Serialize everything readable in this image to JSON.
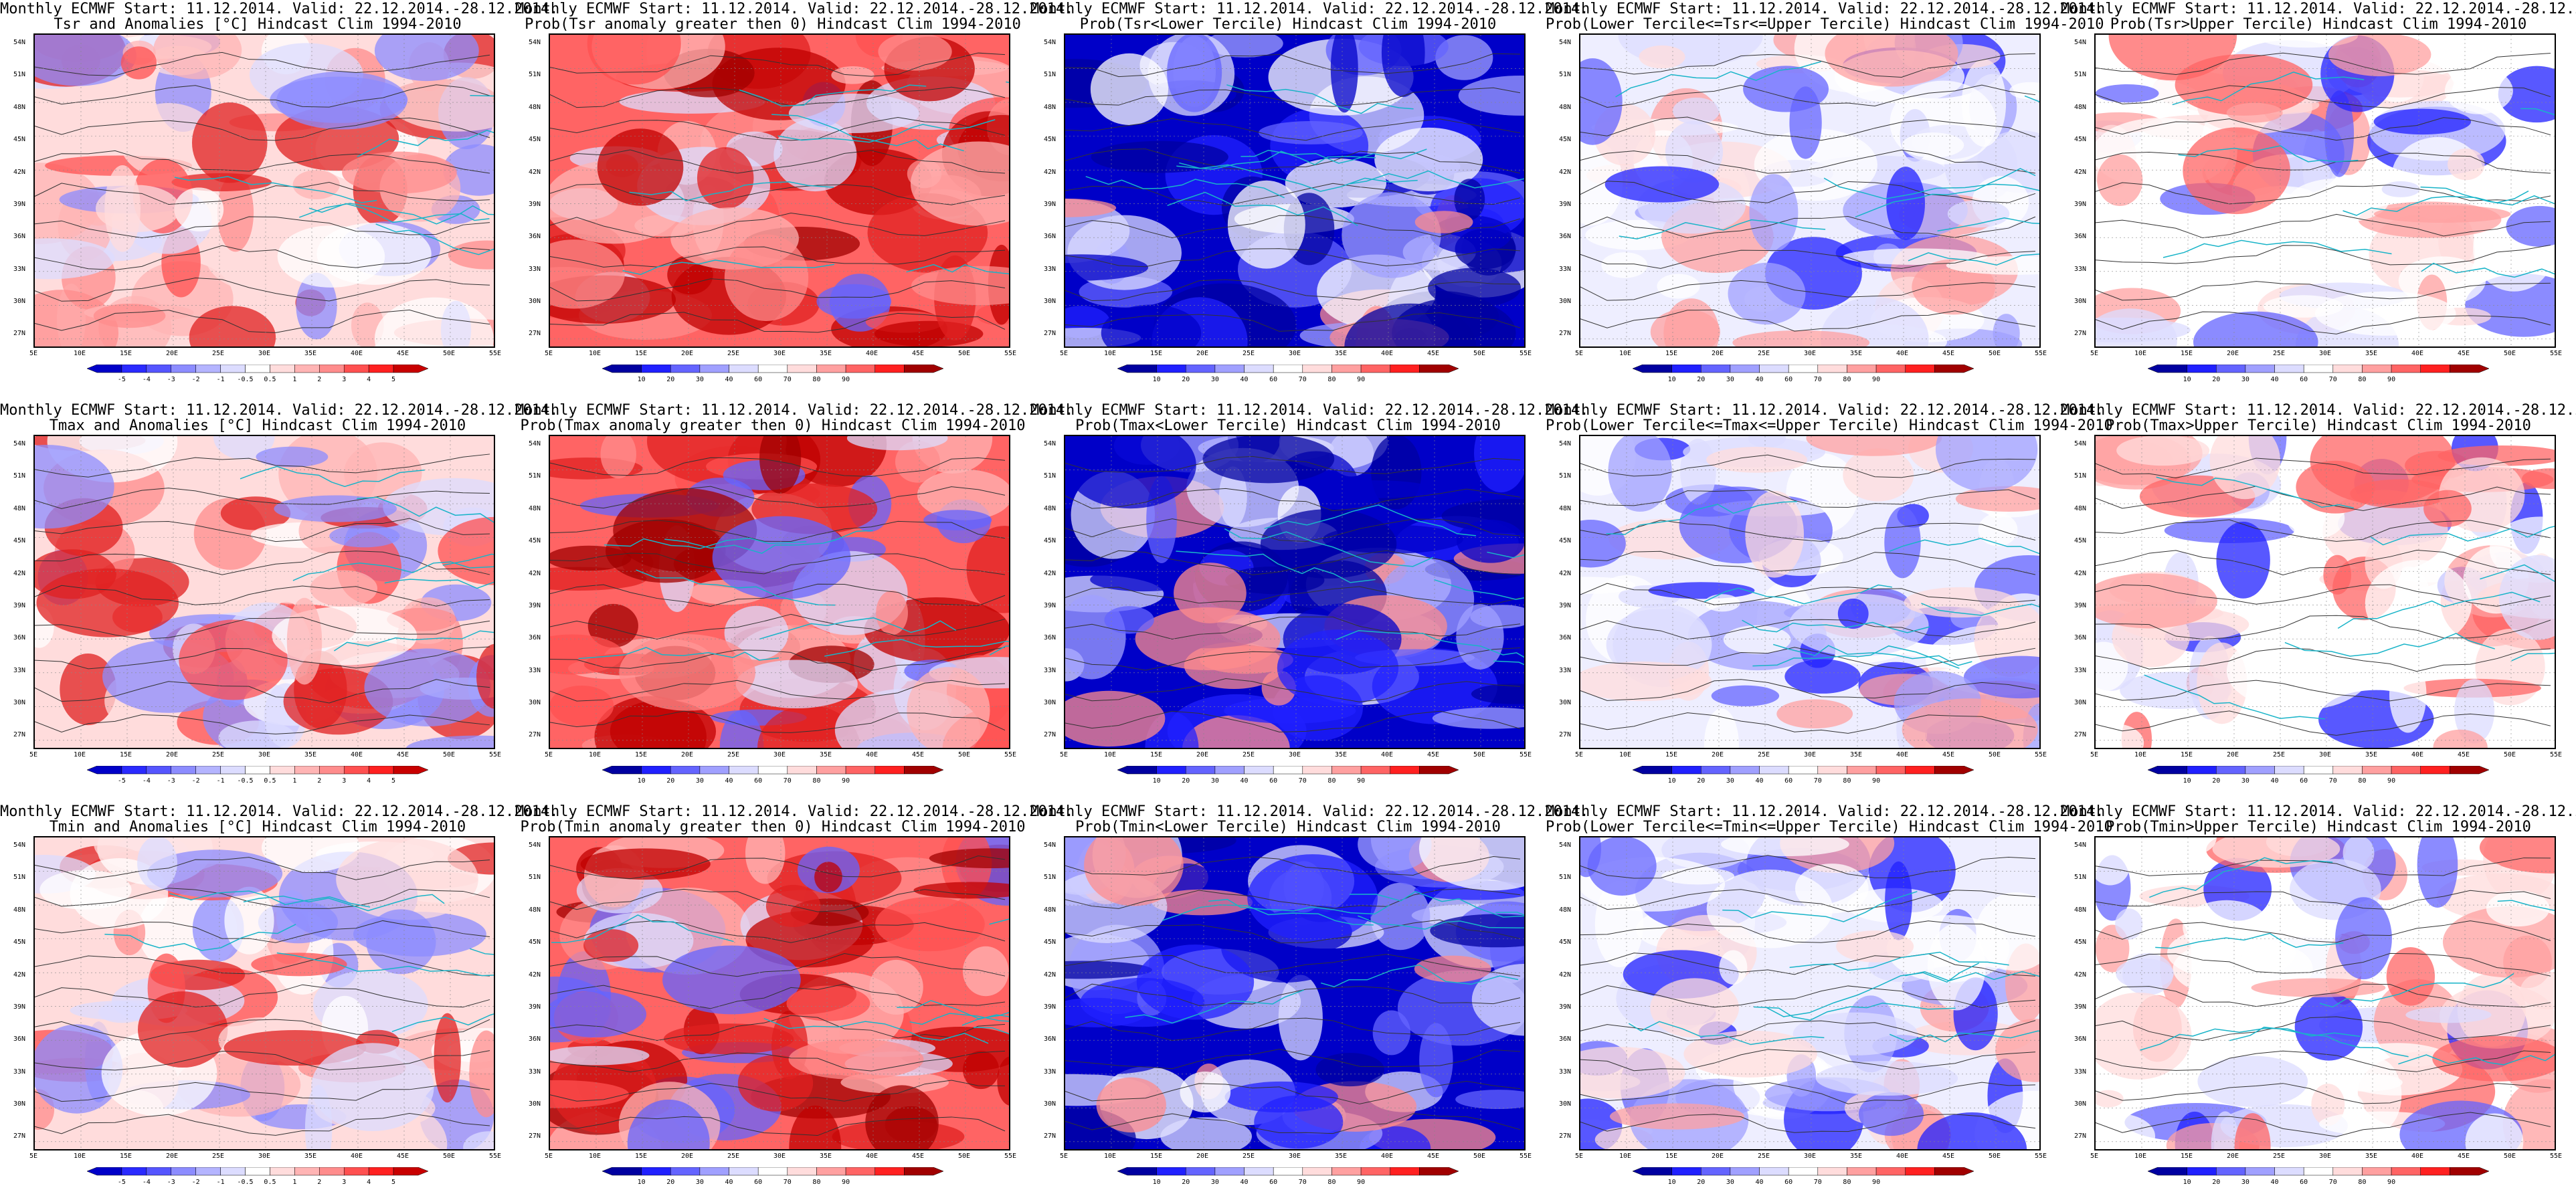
{
  "header_line": "Monthly ECMWF Start: 11.12.2014. Valid: 22.12.2014.-28.12.2014.",
  "lat_labels": [
    "54N",
    "51N",
    "48N",
    "45N",
    "42N",
    "39N",
    "36N",
    "33N",
    "30N",
    "27N"
  ],
  "lon_labels": [
    "5E",
    "10E",
    "15E",
    "20E",
    "25E",
    "30E",
    "35E",
    "40E",
    "45E",
    "50E",
    "55E"
  ],
  "colorbars": {
    "anomaly": {
      "labels": [
        "-5",
        "-4",
        "-3",
        "-2",
        "-1",
        "-0.5",
        "0.5",
        "1",
        "2",
        "3",
        "4",
        "5"
      ],
      "colors": [
        "#0000c8",
        "#2a2aff",
        "#5555ff",
        "#8c8cff",
        "#b4b4ff",
        "#dcdcff",
        "#ffffff",
        "#ffdcdc",
        "#ffb4b4",
        "#ff8c8c",
        "#ff5050",
        "#ff2020",
        "#c80000"
      ]
    },
    "probability": {
      "labels": [
        "10",
        "20",
        "30",
        "40",
        "60",
        "70",
        "80",
        "90"
      ],
      "colors": [
        "#0000a0",
        "#2020ff",
        "#6464ff",
        "#a0a0ff",
        "#dcdcff",
        "#ffffff",
        "#ffdcdc",
        "#ffa0a0",
        "#ff6464",
        "#ff2020",
        "#a00000"
      ]
    }
  },
  "panels": [
    {
      "line2": "Tsr and Anomalies [°C] Hindcast Clim 1994-2010",
      "bar": "anomaly",
      "scheme": "anom"
    },
    {
      "line2": "Prob(Tsr anomaly greater then 0) Hindcast Clim 1994-2010",
      "bar": "probability",
      "scheme": "warm"
    },
    {
      "line2": "Prob(Tsr<Lower Tercile) Hindcast Clim 1994-2010",
      "bar": "probability",
      "scheme": "cold"
    },
    {
      "line2": "Prob(Lower Tercile<=Tsr<=Upper Tercile) Hindcast Clim 1994-2010",
      "bar": "probability",
      "scheme": "mid"
    },
    {
      "line2": "Prob(Tsr>Upper Tercile) Hindcast Clim 1994-2010",
      "bar": "probability",
      "scheme": "upper"
    },
    {
      "line2": "Tmax and Anomalies [°C] Hindcast Clim 1994-2010",
      "bar": "anomaly",
      "scheme": "anom"
    },
    {
      "line2": "Prob(Tmax anomaly greater then 0) Hindcast Clim 1994-2010",
      "bar": "probability",
      "scheme": "warm"
    },
    {
      "line2": "Prob(Tmax<Lower Tercile) Hindcast Clim 1994-2010",
      "bar": "probability",
      "scheme": "cold"
    },
    {
      "line2": "Prob(Lower Tercile<=Tmax<=Upper Tercile) Hindcast Clim 1994-2010",
      "bar": "probability",
      "scheme": "mid"
    },
    {
      "line2": "Prob(Tmax>Upper Tercile) Hindcast Clim 1994-2010",
      "bar": "probability",
      "scheme": "upper"
    },
    {
      "line2": "Tmin and Anomalies [°C] Hindcast Clim 1994-2010",
      "bar": "anomaly",
      "scheme": "anom"
    },
    {
      "line2": "Prob(Tmin anomaly greater then 0) Hindcast Clim 1994-2010",
      "bar": "probability",
      "scheme": "warm"
    },
    {
      "line2": "Prob(Tmin<Lower Tercile) Hindcast Clim 1994-2010",
      "bar": "probability",
      "scheme": "cold"
    },
    {
      "line2": "Prob(Lower Tercile<=Tmin<=Upper Tercile) Hindcast Clim 1994-2010",
      "bar": "probability",
      "scheme": "mid"
    },
    {
      "line2": "Prob(Tmin>Upper Tercile) Hindcast Clim 1994-2010",
      "bar": "probability",
      "scheme": "upper"
    }
  ]
}
